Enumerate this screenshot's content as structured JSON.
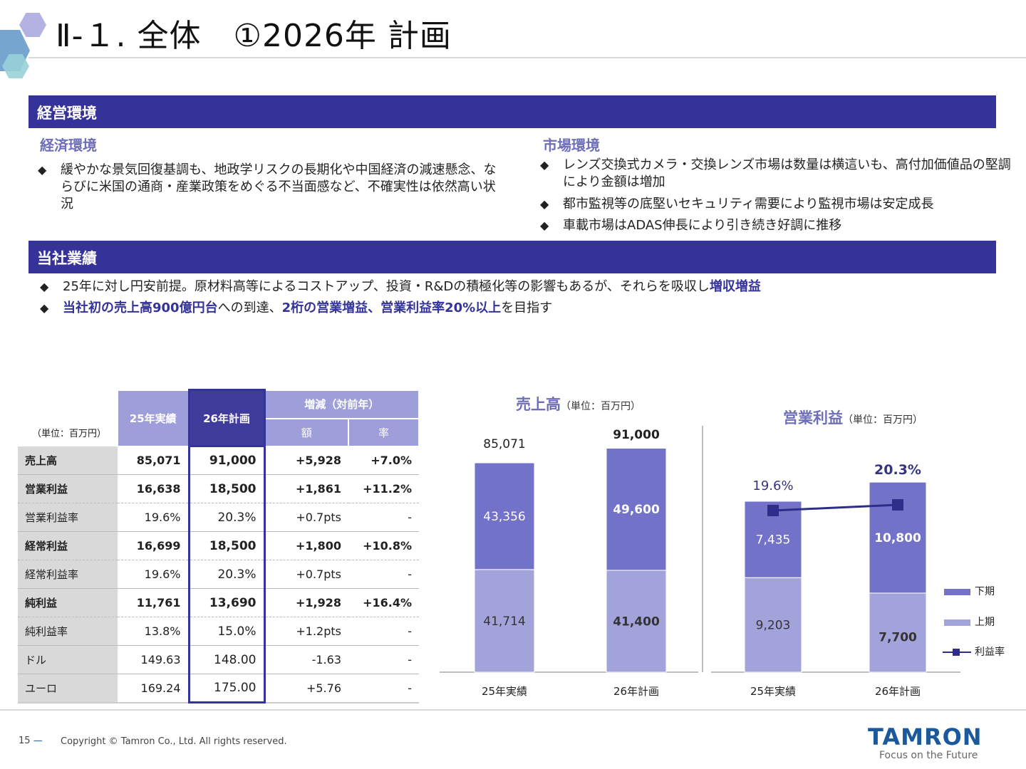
{
  "header": {
    "title": "Ⅱ-１. 全体　①2026年 計画"
  },
  "env": {
    "banner": "経営環境",
    "economy": {
      "heading": "経済環境",
      "bullets": [
        "緩やかな景気回復基調も、地政学リスクの長期化や中国経済の減速懸念、ならびに米国の通商・産業政策をめぐる不当面感など、不確実性は依然高い状況"
      ]
    },
    "market": {
      "heading": "市場環境",
      "bullets": [
        "レンズ交換式カメラ・交換レンズ市場は数量は横這いも、高付加価値品の堅調により金額は増加",
        "都市監視等の底堅いセキュリティ需要により監視市場は安定成長",
        "車載市場はADAS伸長により引き続き好調に推移"
      ]
    }
  },
  "company": {
    "banner": "当社業績",
    "bullet1": {
      "text": "25年に対し円安前提。原材料高等によるコストアップ、投資・R&Dの積極化等の影響もあるが、それらを吸収し",
      "highlight": "増収増益"
    },
    "bullet2": {
      "h1": "当社初の売上高900億円台",
      "t1": "への到達、",
      "h2": "2桁の営業増益、営業利益率20%以上",
      "t2": "を目指す"
    }
  },
  "table": {
    "unit": "（単位：百万円）",
    "col_25": "25年実績",
    "col_26": "26年計画",
    "col_diff": "増減（対前年）",
    "col_amount": "額",
    "col_rate": "率",
    "rows": [
      {
        "label": "売上高",
        "v25": "85,071",
        "v26": "91,000",
        "diff": "+5,928",
        "rate": "+7.0%"
      },
      {
        "label": "営業利益",
        "v25": "16,638",
        "v26": "18,500",
        "diff": "+1,861",
        "rate": "+11.2%"
      },
      {
        "label": "営業利益率",
        "v25": "19.6%",
        "v26": "20.3%",
        "diff": "+0.7pts",
        "rate": "-"
      },
      {
        "label": "経常利益",
        "v25": "16,699",
        "v26": "18,500",
        "diff": "+1,800",
        "rate": "+10.8%"
      },
      {
        "label": "経常利益率",
        "v25": "19.6%",
        "v26": "20.3%",
        "diff": "+0.7pts",
        "rate": "-"
      },
      {
        "label": "純利益",
        "v25": "11,761",
        "v26": "13,690",
        "diff": "+1,928",
        "rate": "+16.4%"
      },
      {
        "label": "純利益率",
        "v25": "13.8%",
        "v26": "15.0%",
        "diff": "+1.2pts",
        "rate": "-"
      },
      {
        "label": "ドル",
        "v25": "149.63",
        "v26": "148.00",
        "diff": "-1.63",
        "rate": "-"
      },
      {
        "label": "ユーロ",
        "v25": "169.24",
        "v26": "175.00",
        "diff": "+5.76",
        "rate": "-"
      }
    ]
  },
  "chart_data": [
    {
      "type": "bar",
      "stacked": true,
      "title": "売上高",
      "unit": "（単位：百万円）",
      "categories": [
        "25年実績",
        "26年計画"
      ],
      "series": [
        {
          "name": "上期",
          "values": [
            41714,
            41400
          ],
          "color": "#a3a3dc"
        },
        {
          "name": "下期",
          "values": [
            43356,
            49600
          ],
          "color": "#7272c8"
        }
      ],
      "totals": [
        "85,071",
        "91,000"
      ],
      "labels": [
        [
          "41,714",
          "41,400"
        ],
        [
          "43,356",
          "49,600"
        ]
      ]
    },
    {
      "type": "bar",
      "stacked": true,
      "title": "営業利益",
      "unit": "（単位：百万円）",
      "categories": [
        "25年実績",
        "26年計画"
      ],
      "series": [
        {
          "name": "上期",
          "values": [
            9203,
            7700
          ],
          "color": "#a3a3dc"
        },
        {
          "name": "下期",
          "values": [
            7435,
            10800
          ],
          "color": "#7272c8"
        }
      ],
      "labels": [
        [
          "9,203",
          "7,700"
        ],
        [
          "7,435",
          "10,800"
        ]
      ],
      "line": {
        "name": "利益率",
        "values": [
          19.6,
          20.3
        ],
        "labels": [
          "19.6%",
          "20.3%"
        ],
        "color": "#2e2e8a"
      },
      "legend": [
        "下期",
        "上期",
        "利益率"
      ],
      "legend_position": "right"
    }
  ],
  "footer": {
    "page": "15",
    "copyright": "Copyright © Tamron Co., Ltd. All rights reserved.",
    "logo": "TAMRON",
    "tagline": "Focus on the Future"
  }
}
